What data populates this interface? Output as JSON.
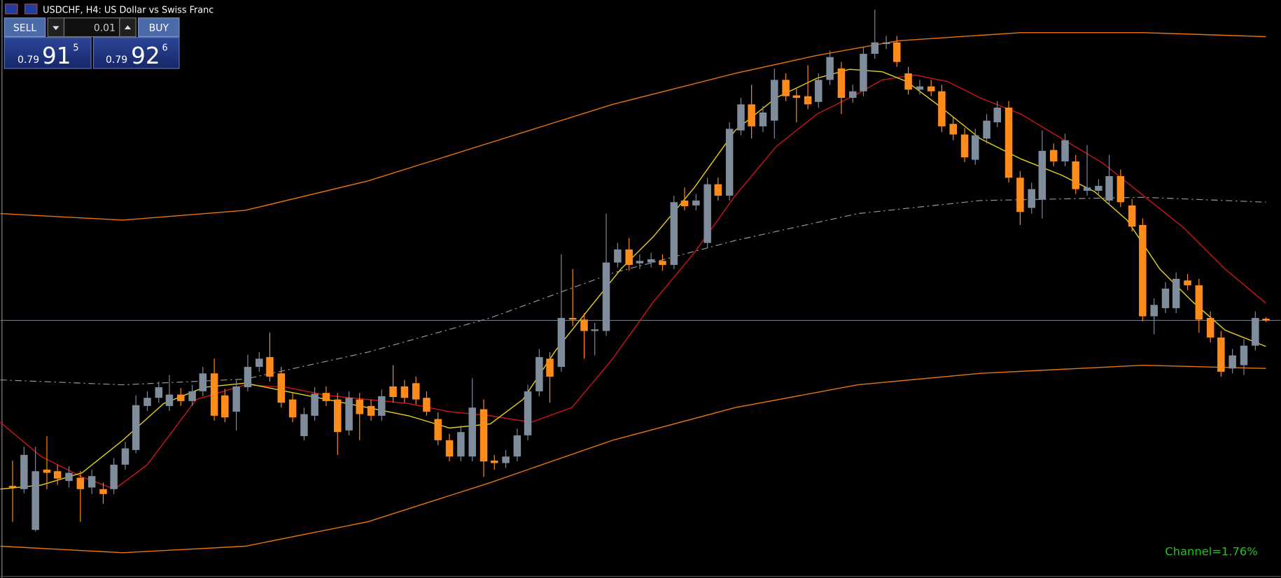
{
  "header": {
    "title": "USDCHF, H4:  US Dollar vs Swiss Franc"
  },
  "trade_panel": {
    "sell": "SELL",
    "buy": "BUY",
    "lot": "0.01",
    "bid": {
      "prefix": "0.79",
      "big": "91",
      "small": "5"
    },
    "ask": {
      "prefix": "0.79",
      "big": "92",
      "small": "6"
    }
  },
  "indicator": {
    "label": "Channel=1.76%"
  }
}
